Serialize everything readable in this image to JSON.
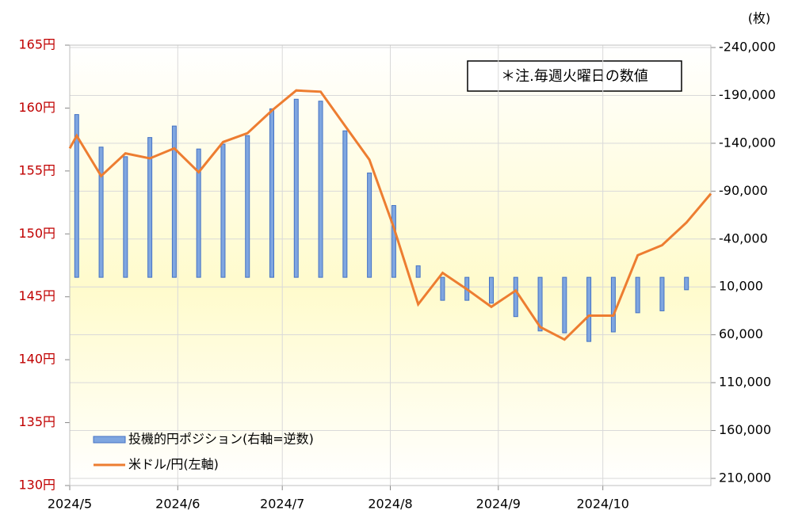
{
  "chart_data": {
    "type": "combo",
    "y2_label": "(枚)",
    "annotation": "＊注.毎週火曜日の数値",
    "xlim": [
      0,
      184
    ],
    "xticks": [
      {
        "value": 0,
        "label": "2024/5"
      },
      {
        "value": 31,
        "label": "2024/6"
      },
      {
        "value": 61,
        "label": "2024/7"
      },
      {
        "value": 92,
        "label": "2024/8"
      },
      {
        "value": 123,
        "label": "2024/9"
      },
      {
        "value": 153,
        "label": "2024/10"
      }
    ],
    "ylim": [
      130,
      165
    ],
    "yticks": [
      {
        "value": 130,
        "label": "130円"
      },
      {
        "value": 135,
        "label": "135円"
      },
      {
        "value": 140,
        "label": "140円"
      },
      {
        "value": 145,
        "label": "145円"
      },
      {
        "value": 150,
        "label": "150円"
      },
      {
        "value": 155,
        "label": "155円"
      },
      {
        "value": 160,
        "label": "160円"
      },
      {
        "value": 165,
        "label": "165円"
      }
    ],
    "y2lim": [
      210000,
      -240000
    ],
    "y2ticks": [
      {
        "value": -240000,
        "label": "-240,000"
      },
      {
        "value": -190000,
        "label": "-190,000"
      },
      {
        "value": -140000,
        "label": "-140,000"
      },
      {
        "value": -90000,
        "label": "-90,000"
      },
      {
        "value": -40000,
        "label": "-40,000"
      },
      {
        "value": 10000,
        "label": "10,000"
      },
      {
        "value": 60000,
        "label": "60,000"
      },
      {
        "value": 110000,
        "label": "110,000"
      },
      {
        "value": 160000,
        "label": "160,000"
      },
      {
        "value": 210000,
        "label": "210,000"
      }
    ],
    "grid": true,
    "legend": "lower left",
    "series": [
      {
        "name": "投機的円ポジション(右軸=逆数)",
        "type": "bar",
        "axis": "y2",
        "color": "#7fa6e0",
        "x": [
          2,
          9,
          16,
          23,
          30,
          37,
          44,
          51,
          58,
          65,
          72,
          79,
          86,
          93,
          100,
          107,
          114,
          121,
          128,
          135,
          142,
          149,
          156,
          163,
          170,
          177
        ],
        "values": [
          -170000,
          -136000,
          -126000,
          -146000,
          -158000,
          -134000,
          -139000,
          -148000,
          -176000,
          -186000,
          -184000,
          -153000,
          -109000,
          -75000,
          -12000,
          24000,
          24000,
          27000,
          41000,
          56000,
          58000,
          67000,
          57000,
          37000,
          35000,
          13000
        ]
      },
      {
        "name": "米ドル/円(左軸)",
        "type": "line",
        "color": "#ed7d31",
        "x": [
          0,
          2,
          9,
          16,
          23,
          30,
          37,
          44,
          51,
          58,
          65,
          72,
          79,
          86,
          93,
          100,
          107,
          114,
          121,
          128,
          135,
          142,
          149,
          156,
          163,
          170,
          177,
          184
        ],
        "values": [
          156.8,
          157.8,
          154.6,
          156.4,
          156.0,
          156.8,
          154.9,
          157.3,
          158.0,
          159.8,
          161.4,
          161.3,
          158.6,
          155.9,
          150.5,
          144.4,
          146.9,
          145.6,
          144.2,
          145.5,
          142.6,
          141.6,
          143.5,
          143.5,
          148.3,
          149.1,
          150.9,
          153.2
        ]
      }
    ]
  }
}
